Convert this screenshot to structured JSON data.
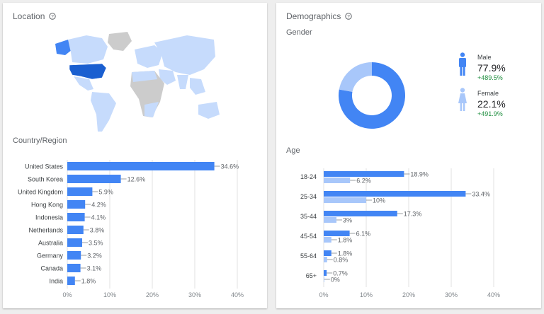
{
  "location_card": {
    "title": "Location",
    "help_icon": "help-circle-icon",
    "map_legend": "world-map",
    "country_section_label": "Country/Region"
  },
  "demographics_card": {
    "title": "Demographics",
    "help_icon": "help-circle-icon",
    "gender_label": "Gender",
    "age_label": "Age",
    "gender": [
      {
        "label": "Male",
        "value": "77.9%",
        "change": "+489.5%",
        "icon": "male-person-icon",
        "color": "#4285f4"
      },
      {
        "label": "Female",
        "value": "22.1%",
        "change": "+491.9%",
        "icon": "female-person-icon",
        "color": "#a8c7fa"
      }
    ]
  },
  "colors": {
    "primary": "#4285f4",
    "secondary": "#a8c7fa",
    "positive": "#1e8e3e",
    "map_highlight": "#4285f4",
    "map_light": "#c6dbfc",
    "map_gray": "#cccccc"
  },
  "chart_data": [
    {
      "type": "bar",
      "orientation": "horizontal",
      "categories": [
        "United States",
        "South Korea",
        "United Kingdom",
        "Hong Kong",
        "Indonesia",
        "Netherlands",
        "Australia",
        "Germany",
        "Canada",
        "India"
      ],
      "values": [
        34.6,
        12.6,
        5.9,
        4.2,
        4.1,
        3.8,
        3.5,
        3.2,
        3.1,
        1.8
      ],
      "value_labels": [
        "34.6%",
        "12.6%",
        "5.9%",
        "4.2%",
        "4.1%",
        "3.8%",
        "3.5%",
        "3.2%",
        "3.1%",
        "1.8%"
      ],
      "xlim": [
        0,
        40
      ],
      "xticks": [
        "0%",
        "10%",
        "20%",
        "30%",
        "40%"
      ],
      "title": "Country/Region",
      "color": "#4285f4"
    },
    {
      "type": "pie",
      "donut": true,
      "title": "Gender",
      "categories": [
        "Male",
        "Female"
      ],
      "values": [
        77.9,
        22.1
      ],
      "colors": [
        "#4285f4",
        "#a8c7fa"
      ]
    },
    {
      "type": "bar",
      "orientation": "horizontal",
      "title": "Age",
      "categories": [
        "18-24",
        "25-34",
        "35-44",
        "45-54",
        "55-64",
        "65+"
      ],
      "series": [
        {
          "values": [
            18.9,
            33.4,
            17.3,
            6.1,
            1.8,
            0.7
          ],
          "value_labels": [
            "18.9%",
            "33.4%",
            "17.3%",
            "6.1%",
            "1.8%",
            "0.7%"
          ],
          "color": "#4285f4"
        },
        {
          "values": [
            6.2,
            10,
            3,
            1.8,
            0.8,
            0
          ],
          "value_labels": [
            "6.2%",
            "10%",
            "3%",
            "1.8%",
            "0.8%",
            "0%"
          ],
          "color": "#a8c7fa"
        }
      ],
      "xlim": [
        0,
        40
      ],
      "xticks": [
        "0%",
        "10%",
        "20%",
        "30%",
        "40%"
      ]
    }
  ]
}
